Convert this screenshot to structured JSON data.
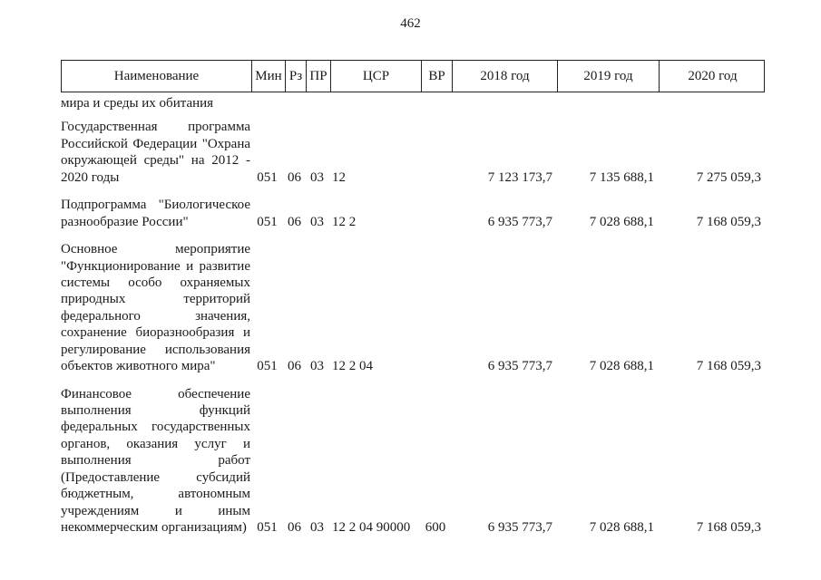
{
  "page": {
    "number": "462"
  },
  "table": {
    "headers": [
      {
        "key": "name",
        "label": "Наименование"
      },
      {
        "key": "min",
        "label": "Мин"
      },
      {
        "key": "rz",
        "label": "Рз"
      },
      {
        "key": "pr",
        "label": "ПР"
      },
      {
        "key": "csr",
        "label": "ЦСР"
      },
      {
        "key": "vr",
        "label": "ВР"
      },
      {
        "key": "y2018",
        "label": "2018 год"
      },
      {
        "key": "y2019",
        "label": "2019 год"
      },
      {
        "key": "y2020",
        "label": "2020 год"
      }
    ],
    "carryover_text": "мира и среды их обитания",
    "rows": [
      {
        "name": "Государственная программа Российской Федерации \"Охрана окружающей среды\" на 2012 - 2020 годы",
        "min": "051",
        "rz": "06",
        "pr": "03",
        "csr": "12",
        "vr": "",
        "y2018": "7 123 173,7",
        "y2019": "7 135 688,1",
        "y2020": "7 275 059,3"
      },
      {
        "name": "Подпрограмма \"Биологическое разнообразие России\"",
        "min": "051",
        "rz": "06",
        "pr": "03",
        "csr": "12 2",
        "vr": "",
        "y2018": "6 935 773,7",
        "y2019": "7 028 688,1",
        "y2020": "7 168 059,3"
      },
      {
        "name": "Основное мероприятие \"Функционирование и развитие системы особо охраняемых природных территорий федерального значения, сохранение биоразнообразия и регулирование использования объектов животного мира\"",
        "min": "051",
        "rz": "06",
        "pr": "03",
        "csr": "12 2 04",
        "vr": "",
        "y2018": "6 935 773,7",
        "y2019": "7 028 688,1",
        "y2020": "7 168 059,3"
      },
      {
        "name": "Финансовое обеспечение выполнения функций федеральных государственных органов, оказания услуг и выполнения работ (Предоставление субсидий бюджетным, автономным учреждениям и иным некоммерческим организациям)",
        "min": "051",
        "rz": "06",
        "pr": "03",
        "csr": "12 2 04 90000",
        "vr": "600",
        "y2018": "6 935 773,7",
        "y2019": "7 028 688,1",
        "y2020": "7 168 059,3"
      }
    ]
  }
}
